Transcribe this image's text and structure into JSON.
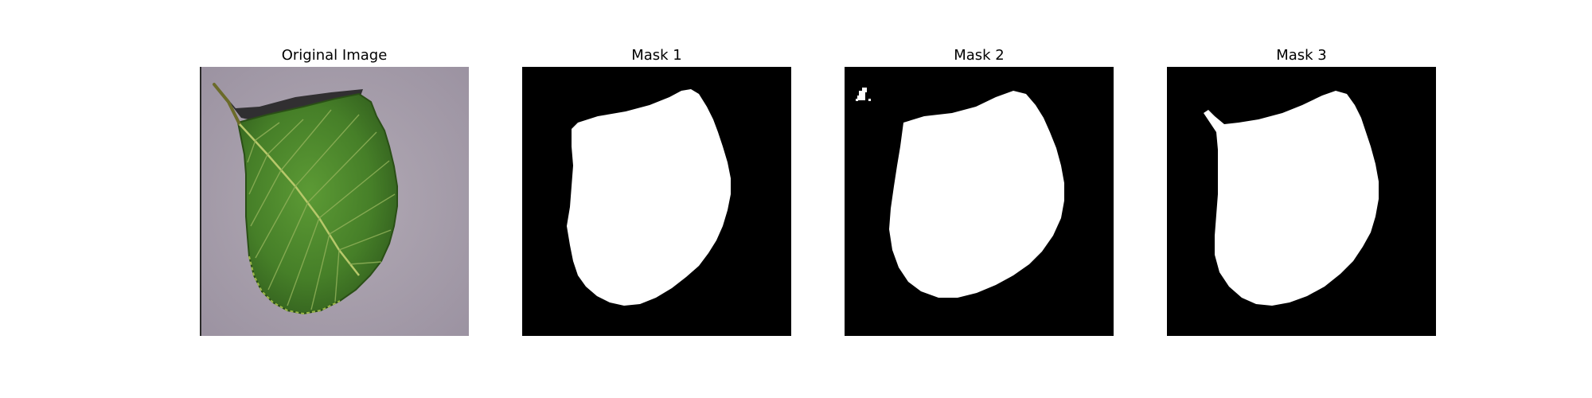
{
  "panels": [
    {
      "title": "Original Image",
      "content": "leaf-photo"
    },
    {
      "title": "Mask 1",
      "content": "binary-mask"
    },
    {
      "title": "Mask 2",
      "content": "binary-mask"
    },
    {
      "title": "Mask 3",
      "content": "binary-mask"
    }
  ],
  "colors": {
    "background": "#ffffff",
    "mask_background": "#000000",
    "mask_foreground": "#ffffff",
    "photo_background": "#a59ba8",
    "leaf_dark": "#2f5a1c",
    "leaf_mid": "#4d8a2c",
    "leaf_light": "#7db04a",
    "vein": "#b7c86a",
    "shadow": "#1c1c1c"
  }
}
